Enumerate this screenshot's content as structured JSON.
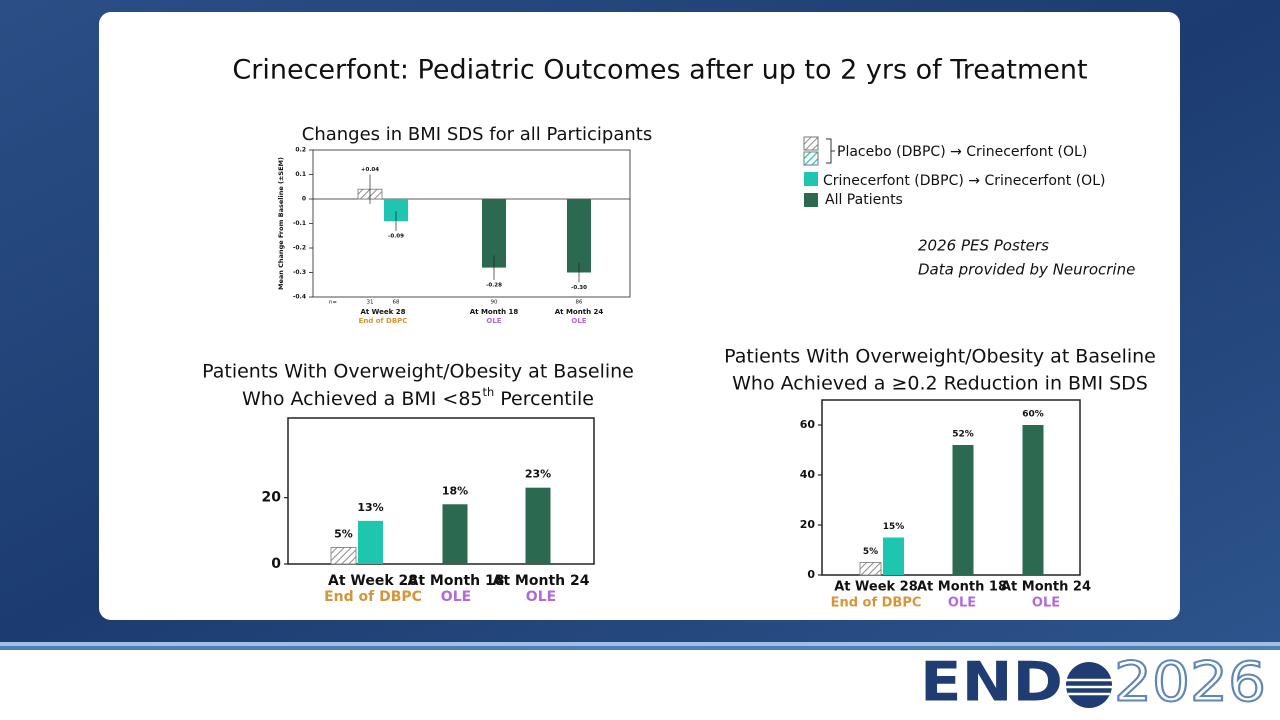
{
  "slide": {
    "title": "Crinecerfont: Pediatric Outcomes after up to 2 yrs of Treatment",
    "notes": [
      "2026 PES Posters",
      "Data provided by Neurocrine"
    ],
    "logo": [
      "END",
      "2026"
    ]
  },
  "chart_data": [
    {
      "type": "bar",
      "title": [
        "Changes in BMI SDS for all Participants"
      ],
      "y_label": "Mean Change From Baseline (±SEM)",
      "categories": [
        "At Week 28",
        "At Month 18",
        "At Month 24"
      ],
      "subcategories": [
        "End of DBPC",
        "OLE",
        "OLE"
      ],
      "subcategory_colors": [
        "#d4963a",
        "#b36ad8",
        "#b36ad8"
      ],
      "n_label": "n=",
      "ylim": [
        -0.4,
        0.2
      ],
      "yticks": [
        0.2,
        0.1,
        0,
        -0.1,
        -0.2,
        -0.3,
        -0.4
      ],
      "series": [
        {
          "name": "Placebo (DBPC) → Crinecerfont (OL)",
          "color": "#a6a6a6",
          "hatch": true,
          "values": [
            0.04,
            null,
            null
          ],
          "value_labels": [
            "+0.04",
            null,
            null
          ],
          "errors": [
            0.06,
            null,
            null
          ],
          "n": [
            31,
            null,
            null
          ]
        },
        {
          "name": "Crinecerfont (DBPC) → Crinecerfont (OL)",
          "color": "#1ec6b0",
          "hatch": false,
          "values": [
            -0.09,
            null,
            null
          ],
          "value_labels": [
            "-0.09",
            null,
            null
          ],
          "errors": [
            0.04,
            null,
            null
          ],
          "n": [
            68,
            null,
            null
          ]
        },
        {
          "name": "All Patients",
          "color": "#2b6a50",
          "hatch": false,
          "values": [
            null,
            -0.28,
            -0.3
          ],
          "value_labels": [
            null,
            "-0.28",
            "-0.30"
          ],
          "errors": [
            null,
            0.05,
            0.04
          ],
          "n": [
            null,
            90,
            86
          ]
        }
      ]
    },
    {
      "type": "bar",
      "title": [
        "Patients With Overweight/Obesity at Baseline",
        [
          "Who Achieved a BMI <85",
          "th",
          " Percentile"
        ]
      ],
      "categories": [
        "At Week 28",
        "At Month 18",
        "At Month 24"
      ],
      "subcategories": [
        "End of DBPC",
        "OLE",
        "OLE"
      ],
      "subcategory_colors": [
        "#d4963a",
        "#b36ad8",
        "#b36ad8"
      ],
      "ylim": [
        0,
        44
      ],
      "yticks": [
        0,
        20
      ],
      "series": [
        {
          "color": "#a6a6a6",
          "hatch": true,
          "values": [
            5,
            null,
            null
          ],
          "value_labels": [
            "5%",
            null,
            null
          ]
        },
        {
          "color": "#1ec6b0",
          "hatch": false,
          "values": [
            13,
            null,
            null
          ],
          "value_labels": [
            "13%",
            null,
            null
          ]
        },
        {
          "color": "#2b6a50",
          "hatch": false,
          "values": [
            null,
            18,
            23
          ],
          "value_labels": [
            null,
            "18%",
            "23%"
          ]
        }
      ]
    },
    {
      "type": "bar",
      "title": [
        "Patients With Overweight/Obesity at Baseline",
        "Who Achieved a ≥0.2 Reduction in BMI SDS"
      ],
      "categories": [
        "At Week 28",
        "At Month 18",
        "At Month 24"
      ],
      "subcategories": [
        "End of DBPC",
        "OLE",
        "OLE"
      ],
      "subcategory_colors": [
        "#d4963a",
        "#b36ad8",
        "#b36ad8"
      ],
      "ylim": [
        0,
        70
      ],
      "yticks": [
        0,
        20,
        40,
        60
      ],
      "series": [
        {
          "color": "#a6a6a6",
          "hatch": true,
          "values": [
            5,
            null,
            null
          ],
          "value_labels": [
            "5%",
            null,
            null
          ]
        },
        {
          "color": "#1ec6b0",
          "hatch": false,
          "values": [
            15,
            null,
            null
          ],
          "value_labels": [
            "15%",
            null,
            null
          ]
        },
        {
          "color": "#2b6a50",
          "hatch": false,
          "values": [
            null,
            52,
            60
          ],
          "value_labels": [
            null,
            "52%",
            "60%"
          ]
        }
      ]
    }
  ]
}
